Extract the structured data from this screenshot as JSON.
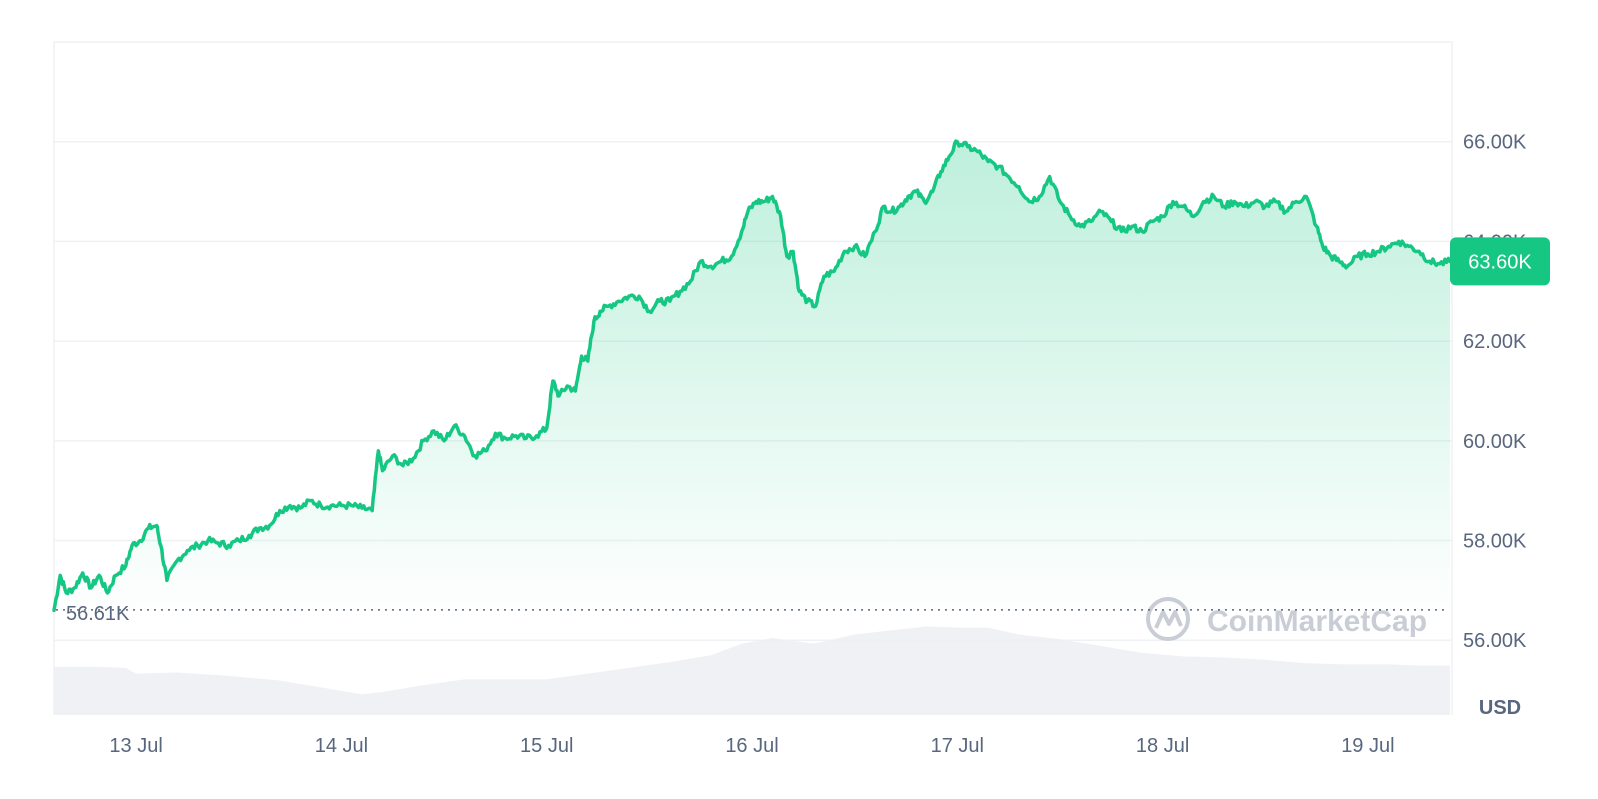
{
  "chart_data": {
    "type": "area",
    "currency_label": "USD",
    "x_ticks": [
      "13 Jul",
      "14 Jul",
      "15 Jul",
      "16 Jul",
      "17 Jul",
      "18 Jul",
      "19 Jul"
    ],
    "y_ticks": [
      "66.00K",
      "64.00K",
      "62.00K",
      "60.00K",
      "58.00K",
      "56.00K"
    ],
    "y_tick_values": [
      66000,
      64000,
      62000,
      60000,
      58000,
      56000
    ],
    "ylim": [
      54500,
      68000
    ],
    "xlim_days": [
      12.6,
      19.4
    ],
    "open_value": 56610,
    "open_label": "56.61K",
    "current_value": 63600,
    "current_label": "63.60K",
    "watermark": "CoinMarketCap",
    "line_color": "#16c784",
    "grid": true,
    "series": [
      {
        "values": [
          [
            12.6,
            56600
          ],
          [
            12.63,
            57300
          ],
          [
            12.66,
            56950
          ],
          [
            12.7,
            57050
          ],
          [
            12.74,
            57350
          ],
          [
            12.78,
            57050
          ],
          [
            12.82,
            57300
          ],
          [
            12.86,
            56950
          ],
          [
            12.9,
            57300
          ],
          [
            12.95,
            57500
          ],
          [
            12.98,
            57900
          ],
          [
            13.02,
            58000
          ],
          [
            13.06,
            58250
          ],
          [
            13.1,
            58300
          ],
          [
            13.12,
            57900
          ],
          [
            13.15,
            57200
          ],
          [
            13.2,
            57600
          ],
          [
            13.25,
            57800
          ],
          [
            13.3,
            57900
          ],
          [
            13.35,
            58000
          ],
          [
            13.4,
            57950
          ],
          [
            13.45,
            57900
          ],
          [
            13.5,
            58000
          ],
          [
            13.55,
            58100
          ],
          [
            13.6,
            58250
          ],
          [
            13.65,
            58300
          ],
          [
            13.7,
            58600
          ],
          [
            13.75,
            58700
          ],
          [
            13.8,
            58650
          ],
          [
            13.85,
            58800
          ],
          [
            13.9,
            58700
          ],
          [
            13.95,
            58700
          ],
          [
            14.0,
            58700
          ],
          [
            14.05,
            58700
          ],
          [
            14.1,
            58650
          ],
          [
            14.15,
            58600
          ],
          [
            14.18,
            59800
          ],
          [
            14.2,
            59400
          ],
          [
            14.25,
            59700
          ],
          [
            14.3,
            59500
          ],
          [
            14.35,
            59650
          ],
          [
            14.4,
            60000
          ],
          [
            14.45,
            60200
          ],
          [
            14.5,
            60000
          ],
          [
            14.55,
            60300
          ],
          [
            14.6,
            60100
          ],
          [
            14.65,
            59700
          ],
          [
            14.7,
            59800
          ],
          [
            14.75,
            60150
          ],
          [
            14.8,
            60050
          ],
          [
            14.85,
            60100
          ],
          [
            14.9,
            60050
          ],
          [
            14.95,
            60100
          ],
          [
            15.0,
            60250
          ],
          [
            15.03,
            61200
          ],
          [
            15.06,
            60900
          ],
          [
            15.1,
            61100
          ],
          [
            15.14,
            61000
          ],
          [
            15.17,
            61700
          ],
          [
            15.2,
            61600
          ],
          [
            15.23,
            62400
          ],
          [
            15.26,
            62600
          ],
          [
            15.3,
            62700
          ],
          [
            15.35,
            62800
          ],
          [
            15.4,
            62900
          ],
          [
            15.45,
            62900
          ],
          [
            15.5,
            62600
          ],
          [
            15.55,
            62800
          ],
          [
            15.6,
            62800
          ],
          [
            15.65,
            63000
          ],
          [
            15.7,
            63200
          ],
          [
            15.75,
            63600
          ],
          [
            15.8,
            63500
          ],
          [
            15.85,
            63600
          ],
          [
            15.9,
            63700
          ],
          [
            15.95,
            64200
          ],
          [
            15.98,
            64600
          ],
          [
            16.02,
            64800
          ],
          [
            16.06,
            64800
          ],
          [
            16.1,
            64900
          ],
          [
            16.14,
            64500
          ],
          [
            16.17,
            63700
          ],
          [
            16.2,
            63800
          ],
          [
            16.23,
            63000
          ],
          [
            16.27,
            62800
          ],
          [
            16.31,
            62700
          ],
          [
            16.35,
            63300
          ],
          [
            16.4,
            63400
          ],
          [
            16.45,
            63800
          ],
          [
            16.5,
            63900
          ],
          [
            16.55,
            63700
          ],
          [
            16.6,
            64200
          ],
          [
            16.64,
            64700
          ],
          [
            16.68,
            64600
          ],
          [
            16.72,
            64700
          ],
          [
            16.76,
            64900
          ],
          [
            16.8,
            65000
          ],
          [
            16.84,
            64800
          ],
          [
            16.88,
            65000
          ],
          [
            16.92,
            65400
          ],
          [
            16.96,
            65700
          ],
          [
            17.0,
            66000
          ],
          [
            17.05,
            65900
          ],
          [
            17.1,
            65800
          ],
          [
            17.15,
            65600
          ],
          [
            17.2,
            65500
          ],
          [
            17.25,
            65300
          ],
          [
            17.3,
            65100
          ],
          [
            17.35,
            64800
          ],
          [
            17.4,
            64900
          ],
          [
            17.45,
            65300
          ],
          [
            17.5,
            64800
          ],
          [
            17.55,
            64500
          ],
          [
            17.6,
            64300
          ],
          [
            17.65,
            64400
          ],
          [
            17.7,
            64600
          ],
          [
            17.75,
            64400
          ],
          [
            17.8,
            64200
          ],
          [
            17.85,
            64300
          ],
          [
            17.9,
            64200
          ],
          [
            17.95,
            64400
          ],
          [
            18.0,
            64500
          ],
          [
            18.05,
            64800
          ],
          [
            18.1,
            64700
          ],
          [
            18.15,
            64500
          ],
          [
            18.2,
            64800
          ],
          [
            18.25,
            64900
          ],
          [
            18.3,
            64700
          ],
          [
            18.35,
            64800
          ],
          [
            18.4,
            64700
          ],
          [
            18.45,
            64800
          ],
          [
            18.5,
            64700
          ],
          [
            18.55,
            64800
          ],
          [
            18.6,
            64600
          ],
          [
            18.65,
            64800
          ],
          [
            18.7,
            64900
          ],
          [
            18.75,
            64300
          ],
          [
            18.78,
            63900
          ],
          [
            18.82,
            63700
          ],
          [
            18.86,
            63600
          ],
          [
            18.9,
            63500
          ],
          [
            18.95,
            63700
          ],
          [
            19.0,
            63750
          ],
          [
            19.05,
            63800
          ],
          [
            19.1,
            63900
          ],
          [
            19.15,
            64000
          ],
          [
            19.2,
            63900
          ],
          [
            19.25,
            63800
          ],
          [
            19.3,
            63600
          ],
          [
            19.35,
            63550
          ],
          [
            19.4,
            63600
          ]
        ]
      }
    ],
    "volume_values": [
      [
        12.6,
        0.42
      ],
      [
        12.8,
        0.42
      ],
      [
        12.95,
        0.41
      ],
      [
        13.0,
        0.36
      ],
      [
        13.2,
        0.37
      ],
      [
        13.45,
        0.34
      ],
      [
        13.7,
        0.3
      ],
      [
        13.9,
        0.24
      ],
      [
        14.1,
        0.18
      ],
      [
        14.2,
        0.2
      ],
      [
        14.4,
        0.26
      ],
      [
        14.6,
        0.31
      ],
      [
        14.8,
        0.31
      ],
      [
        15.0,
        0.31
      ],
      [
        15.2,
        0.36
      ],
      [
        15.4,
        0.41
      ],
      [
        15.6,
        0.46
      ],
      [
        15.8,
        0.52
      ],
      [
        15.95,
        0.62
      ],
      [
        16.1,
        0.67
      ],
      [
        16.3,
        0.62
      ],
      [
        16.5,
        0.7
      ],
      [
        16.7,
        0.74
      ],
      [
        16.85,
        0.77
      ],
      [
        17.0,
        0.76
      ],
      [
        17.15,
        0.76
      ],
      [
        17.3,
        0.7
      ],
      [
        17.5,
        0.66
      ],
      [
        17.7,
        0.6
      ],
      [
        17.9,
        0.54
      ],
      [
        18.1,
        0.51
      ],
      [
        18.3,
        0.5
      ],
      [
        18.5,
        0.48
      ],
      [
        18.7,
        0.45
      ],
      [
        18.9,
        0.44
      ],
      [
        19.1,
        0.44
      ],
      [
        19.25,
        0.43
      ],
      [
        19.4,
        0.43
      ]
    ]
  }
}
